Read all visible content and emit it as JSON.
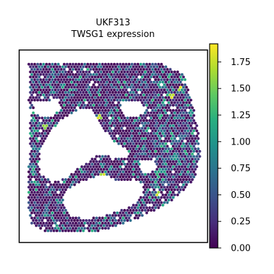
{
  "chart_data": {
    "type": "scatter",
    "title_lines": [
      "UKF313",
      "TWSG1 expression"
    ],
    "xlabel": "",
    "ylabel": "",
    "colorbar": {
      "colormap": "viridis",
      "range": [
        0.0,
        1.92
      ],
      "ticks": [
        0.0,
        0.25,
        0.5,
        0.75,
        1.0,
        1.25,
        1.5,
        1.75
      ],
      "tick_labels": [
        "0.00",
        "0.25",
        "0.50",
        "0.75",
        "1.00",
        "1.25",
        "1.50",
        "1.75"
      ]
    },
    "grid": false,
    "legend": "none",
    "point_color_range_hex": [
      "#440154",
      "#fde725"
    ]
  }
}
